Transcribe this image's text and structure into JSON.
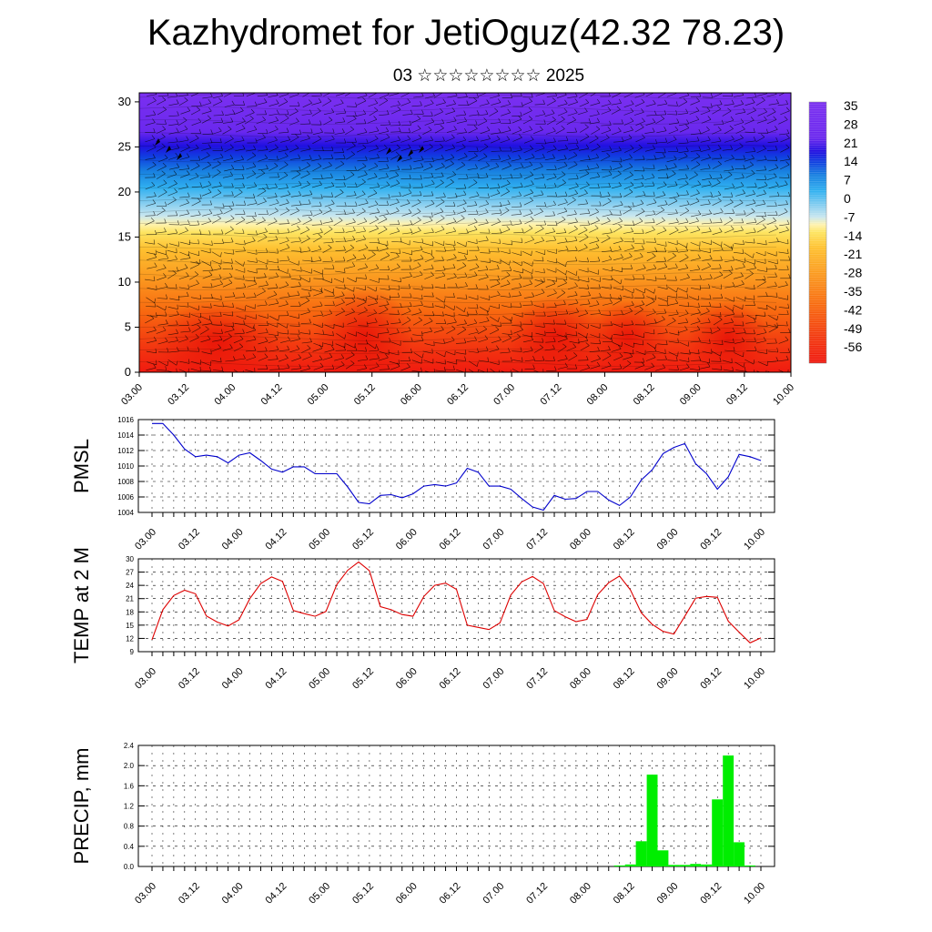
{
  "title": "Kazhydromet for JetiOguz(42.32 78.23)",
  "subtitle": "03 ☆☆☆☆☆☆☆☆ 2025",
  "colors": {
    "pmsl": "#0000cc",
    "temp": "#dd0000",
    "precip": "#00ee00"
  },
  "x_labels": [
    "03.00",
    "03.12",
    "04.00",
    "04.12",
    "05.00",
    "05.12",
    "06.00",
    "06.12",
    "07.00",
    "07.12",
    "08.00",
    "08.12",
    "09.00",
    "09.12",
    "10.00"
  ],
  "chart_data": [
    {
      "type": "heatmap",
      "ylim": [
        0,
        31
      ],
      "yticks": [
        0,
        5,
        10,
        15,
        20,
        25,
        30
      ],
      "colorbar_labels": [
        "35",
        "28",
        "21",
        "14",
        "7",
        "0",
        "-7",
        "-14",
        "-21",
        "-28",
        "-35",
        "-42",
        "-49",
        "-56"
      ],
      "legend": "right"
    },
    {
      "type": "line",
      "ylabel": "PMSL",
      "ylim": [
        1004,
        1016
      ],
      "yticks": [
        1004,
        1006,
        1008,
        1010,
        1012,
        1014,
        1016
      ],
      "x": [
        0,
        3,
        6,
        9,
        12,
        15,
        18,
        21,
        24,
        27,
        30,
        33,
        36,
        39,
        42,
        45,
        48,
        51,
        54,
        57,
        60,
        63,
        66,
        69,
        72,
        75,
        78,
        81,
        84,
        87,
        90,
        93,
        96,
        99,
        102,
        105,
        108,
        111,
        114,
        117,
        120,
        123,
        126,
        129,
        132,
        135,
        138,
        141,
        144,
        147,
        150,
        153,
        156,
        159,
        162,
        165,
        168
      ],
      "values": [
        1015.5,
        1015.5,
        1014,
        1012.2,
        1011.2,
        1011.4,
        1011.2,
        1010.4,
        1011.4,
        1011.7,
        1010.7,
        1009.6,
        1009.2,
        1009.9,
        1009.9,
        1009.0,
        1009.0,
        1009.0,
        1007.3,
        1005.3,
        1005.1,
        1006.2,
        1006.3,
        1005.9,
        1006.4,
        1007.4,
        1007.6,
        1007.4,
        1007.8,
        1009.7,
        1009.2,
        1007.4,
        1007.4,
        1007.0,
        1005.8,
        1004.7,
        1004.3,
        1006.2,
        1005.7,
        1005.8,
        1006.7,
        1006.7,
        1005.6,
        1004.9,
        1006.0,
        1008.2,
        1009.5,
        1011.6,
        1012.4,
        1012.9,
        1010.3,
        1009.0,
        1007.0,
        1008.6,
        1011.5,
        1011.2,
        1010.7
      ]
    },
    {
      "type": "line",
      "ylabel": "TEMP at 2 M",
      "ylim": [
        9,
        30
      ],
      "yticks": [
        9,
        12,
        15,
        18,
        21,
        24,
        27,
        30
      ],
      "x": [
        0,
        3,
        6,
        9,
        12,
        15,
        18,
        21,
        24,
        27,
        30,
        33,
        36,
        39,
        42,
        45,
        48,
        51,
        54,
        57,
        60,
        63,
        66,
        69,
        72,
        75,
        78,
        81,
        84,
        87,
        90,
        93,
        96,
        99,
        102,
        105,
        108,
        111,
        114,
        117,
        120,
        123,
        126,
        129,
        132,
        135,
        138,
        141,
        144,
        147,
        150,
        153,
        156,
        159,
        162,
        165,
        168
      ],
      "values": [
        11.7,
        18.5,
        21.7,
        22.9,
        22.1,
        17.1,
        15.7,
        14.8,
        16.2,
        21.0,
        24.4,
        25.9,
        24.9,
        18.3,
        17.6,
        17.0,
        18.1,
        24.2,
        27.4,
        29.3,
        27.3,
        19.2,
        18.5,
        17.4,
        17.0,
        21.5,
        24.0,
        24.5,
        23.1,
        15.0,
        14.5,
        14.0,
        15.5,
        21.8,
        24.8,
        26.0,
        24.4,
        18.3,
        16.9,
        15.8,
        16.3,
        21.9,
        24.6,
        26.1,
        23.0,
        17.8,
        15.2,
        13.6,
        13.0,
        17.0,
        21.1,
        21.5,
        21.3,
        15.9,
        13.4,
        11.0,
        12.1
      ]
    },
    {
      "type": "bar",
      "ylabel": "PRECIP, mm",
      "ylim": [
        0,
        2.4
      ],
      "yticks": [
        "0.0",
        "0.4",
        "0.8",
        "1.2",
        "1.6",
        "2.0",
        "2.4"
      ],
      "x": [
        129,
        132,
        135,
        138,
        141,
        144,
        147,
        150,
        153,
        156,
        159,
        162,
        165
      ],
      "values": [
        0.02,
        0.04,
        0.5,
        1.82,
        0.32,
        0.03,
        0.03,
        0.05,
        0.04,
        1.33,
        2.2,
        0.48,
        0.02
      ]
    }
  ]
}
